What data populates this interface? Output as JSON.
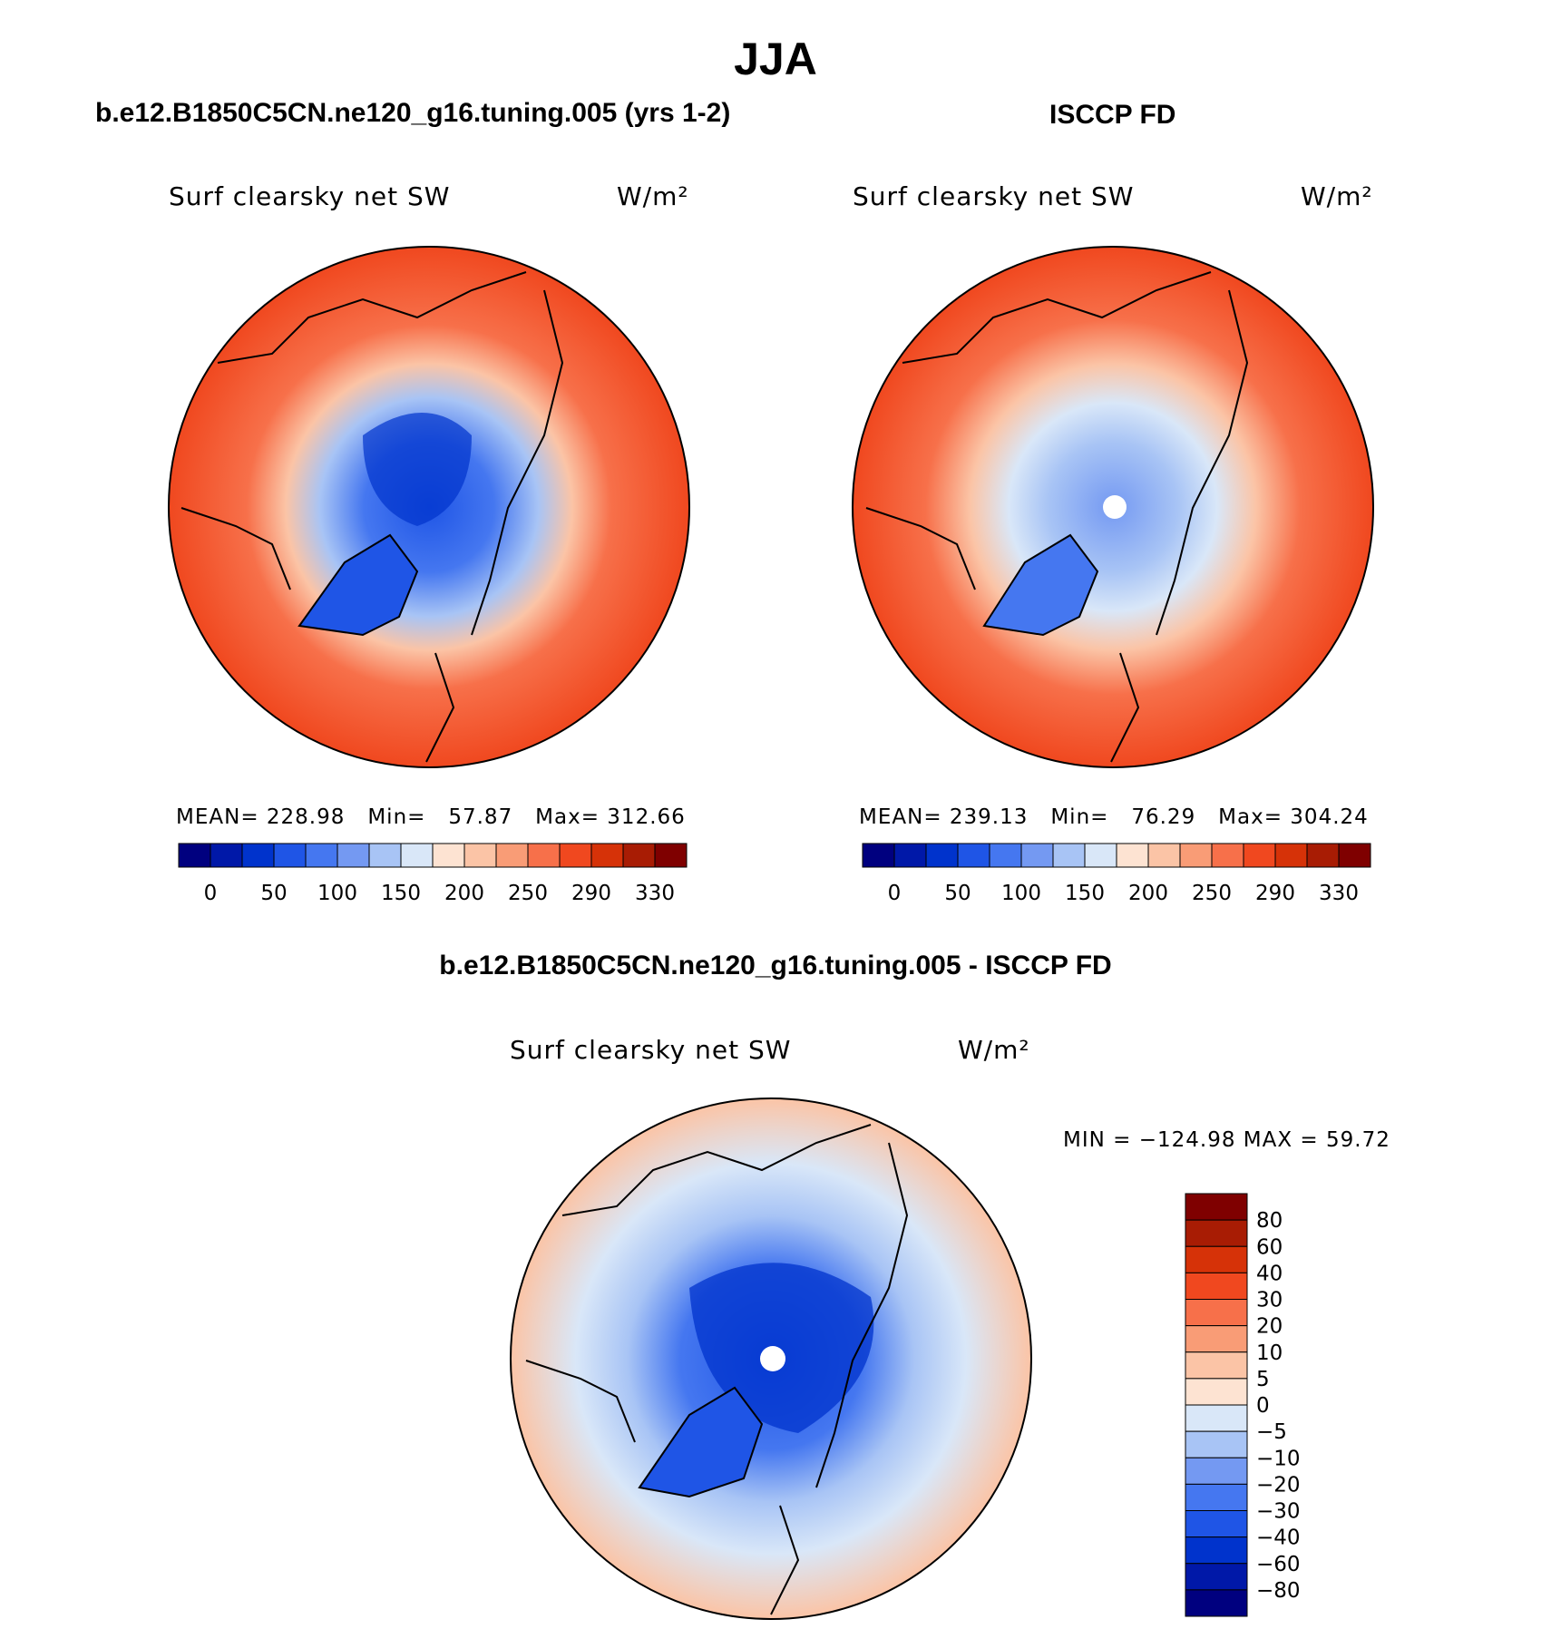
{
  "season": "JJA",
  "panels": {
    "model": {
      "case": "b.e12.B1850C5CN.ne120_g16.tuning.005 (yrs 1-2)",
      "variable": "Surf clearsky net SW",
      "units": "W/m²",
      "mean_label": "MEAN=",
      "mean": "228.98",
      "min_label": "Min=",
      "min": "57.87",
      "max_label": "Max=",
      "max": "312.66"
    },
    "obs": {
      "case": "ISCCP FD",
      "variable": "Surf clearsky net SW",
      "units": "W/m²",
      "mean_label": "MEAN=",
      "mean": "239.13",
      "min_label": "Min=",
      "min": "76.29",
      "max_label": "Max=",
      "max": "304.24"
    },
    "diff": {
      "case": "b.e12.B1850C5CN.ne120_g16.tuning.005 - ISCCP FD",
      "variable": "Surf clearsky net SW",
      "units": "W/m²",
      "stats": "MIN = −124.98 MAX =   59.72"
    }
  },
  "colorbar": {
    "colors": [
      "#00007f",
      "#0018a8",
      "#0033cc",
      "#1f55e6",
      "#4577f0",
      "#7499f2",
      "#a8c4f5",
      "#d9e7f8",
      "#fde3d2",
      "#fbc4a6",
      "#f99c76",
      "#f7704a",
      "#f0481f",
      "#d63208",
      "#a81c04",
      "#7f0000"
    ],
    "labels": [
      "0",
      "50",
      "100",
      "150",
      "200",
      "250",
      "290",
      "330"
    ]
  },
  "diff_colorbar": {
    "colors": [
      "#00007f",
      "#0018a8",
      "#0033cc",
      "#1f55e6",
      "#4577f0",
      "#7499f2",
      "#a8c4f5",
      "#d9e7f8",
      "#fde3d2",
      "#fbc4a6",
      "#f99c76",
      "#f7704a",
      "#f0481f",
      "#d63208",
      "#a81c04",
      "#7f0000"
    ],
    "labels": [
      "−80",
      "−60",
      "−40",
      "−30",
      "−20",
      "−10",
      "−5",
      "0",
      "5",
      "10",
      "20",
      "30",
      "40",
      "60",
      "80"
    ]
  },
  "legend_items": [
    {
      "label": "0"
    },
    {
      "label": "50"
    },
    {
      "label": "100"
    },
    {
      "label": "150"
    },
    {
      "label": "200"
    },
    {
      "label": "250"
    },
    {
      "label": "290"
    },
    {
      "label": "330"
    }
  ]
}
